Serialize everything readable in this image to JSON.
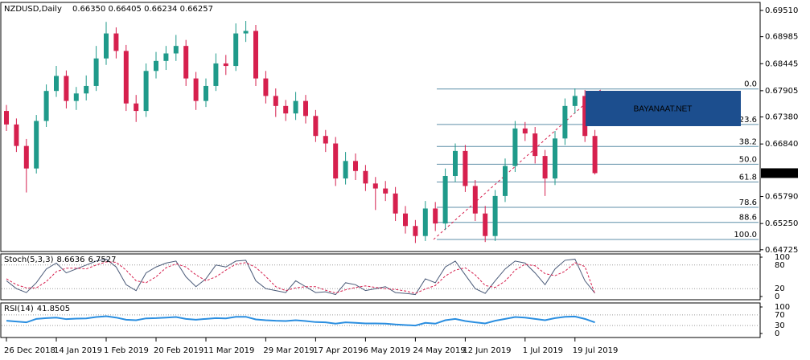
{
  "chart_data": [
    {
      "type": "candlestick",
      "title": "NZDUSD,Daily",
      "subtitle": "0.66350 0.66405 0.66234 0.66257",
      "categories": [
        "26 Dec 2018",
        null,
        null,
        null,
        null,
        "14 Jan 2019",
        null,
        null,
        null,
        null,
        "1 Feb 2019",
        null,
        null,
        null,
        null,
        "20 Feb 2019",
        null,
        null,
        null,
        null,
        "11 Mar 2019",
        null,
        null,
        null,
        null,
        null,
        "29 Mar 2019",
        null,
        null,
        null,
        null,
        "17 Apr 2019",
        null,
        null,
        null,
        null,
        "6 May 2019",
        null,
        null,
        null,
        null,
        "24 May 2019",
        null,
        null,
        null,
        null,
        "12 Jun 2019",
        null,
        null,
        null,
        null,
        null,
        "1 Jul 2019",
        null,
        null,
        null,
        null,
        "19 Jul 2019",
        null,
        null
      ],
      "open": [
        0.675,
        0.6723,
        0.668,
        0.6635,
        0.673,
        0.679,
        0.682,
        0.677,
        0.6785,
        0.68,
        0.6855,
        0.6905,
        0.687,
        0.6765,
        0.675,
        0.683,
        0.685,
        0.6865,
        0.688,
        0.6815,
        0.677,
        0.68,
        0.6845,
        0.684,
        0.6905,
        0.691,
        0.6815,
        0.678,
        0.676,
        0.6745,
        0.677,
        0.674,
        0.67,
        0.6685,
        0.6615,
        0.665,
        0.663,
        0.6605,
        0.6595,
        0.6585,
        0.6545,
        0.652,
        0.65,
        0.6555,
        0.6525,
        0.662,
        0.667,
        0.66,
        0.6545,
        0.65,
        0.658,
        0.664,
        0.6715,
        0.6705,
        0.666,
        0.6615,
        0.6695,
        0.676,
        0.678,
        0.67
      ],
      "high": [
        0.6762,
        0.6735,
        0.6694,
        0.6742,
        0.6803,
        0.684,
        0.6831,
        0.6798,
        0.6821,
        0.688,
        0.6928,
        0.6917,
        0.6882,
        0.6782,
        0.6845,
        0.6868,
        0.688,
        0.6902,
        0.6892,
        0.6828,
        0.6815,
        0.6865,
        0.6862,
        0.6925,
        0.693,
        0.6922,
        0.683,
        0.6795,
        0.6772,
        0.6788,
        0.6782,
        0.6752,
        0.6712,
        0.6698,
        0.6668,
        0.6665,
        0.6642,
        0.6618,
        0.661,
        0.6598,
        0.656,
        0.6532,
        0.657,
        0.6568,
        0.6635,
        0.6685,
        0.6682,
        0.6612,
        0.656,
        0.6592,
        0.6655,
        0.673,
        0.6728,
        0.6718,
        0.6672,
        0.671,
        0.6775,
        0.6795,
        0.6792,
        0.6712
      ],
      "low": [
        0.671,
        0.6668,
        0.6587,
        0.6625,
        0.6718,
        0.6778,
        0.6755,
        0.6752,
        0.6771,
        0.679,
        0.6842,
        0.6855,
        0.675,
        0.6728,
        0.6738,
        0.6815,
        0.6832,
        0.685,
        0.68,
        0.6752,
        0.6758,
        0.679,
        0.6822,
        0.683,
        0.6888,
        0.68,
        0.6765,
        0.6738,
        0.673,
        0.6732,
        0.6725,
        0.6688,
        0.6668,
        0.66,
        0.6603,
        0.6612,
        0.659,
        0.6552,
        0.657,
        0.653,
        0.6505,
        0.6486,
        0.649,
        0.651,
        0.6512,
        0.6608,
        0.6588,
        0.653,
        0.6488,
        0.649,
        0.6568,
        0.6628,
        0.669,
        0.6645,
        0.658,
        0.6602,
        0.6682,
        0.6745,
        0.6688,
        0.6623
      ],
      "close": [
        0.6723,
        0.668,
        0.6635,
        0.673,
        0.679,
        0.682,
        0.677,
        0.6785,
        0.68,
        0.6855,
        0.6905,
        0.687,
        0.6765,
        0.675,
        0.683,
        0.685,
        0.6865,
        0.688,
        0.6815,
        0.677,
        0.68,
        0.6845,
        0.684,
        0.6905,
        0.691,
        0.6815,
        0.678,
        0.676,
        0.6745,
        0.677,
        0.674,
        0.67,
        0.6685,
        0.6615,
        0.665,
        0.663,
        0.6605,
        0.6595,
        0.6585,
        0.6545,
        0.652,
        0.65,
        0.6555,
        0.6525,
        0.662,
        0.667,
        0.66,
        0.6545,
        0.65,
        0.658,
        0.664,
        0.6715,
        0.6705,
        0.666,
        0.6615,
        0.6695,
        0.676,
        0.678,
        0.67,
        0.66257
      ],
      "up_color": "#1f9a8a",
      "down_color": "#d6204e",
      "ylim": [
        0.6469,
        0.6967
      ],
      "yticks": [
        {
          "value": 0.6951,
          "label": "0.69510"
        },
        0.68985,
        0.68445,
        0.67905,
        {
          "value": 0.6738,
          "label": "0.67380"
        },
        {
          "value": 0.6684,
          "label": "0.66840"
        },
        {
          "value": 0.6579,
          "label": "0.65790"
        },
        {
          "value": 0.6525,
          "label": "0.65250"
        },
        0.64725
      ],
      "fibonacci": {
        "high": 0.6794,
        "low": 0.6493,
        "color": "#5f8fa8",
        "trend_color": "#d6204e",
        "levels": [
          {
            "value": 0,
            "label": "0.0"
          },
          23.6,
          38.2,
          {
            "value": 50,
            "label": "50.0"
          },
          61.8,
          78.6,
          88.6,
          {
            "value": 100,
            "label": "100.0"
          }
        ]
      },
      "annotation": "BAYANAAT.NET"
    },
    {
      "type": "line",
      "title": "Stoch(5,3,3)",
      "series": [
        {
          "color": "#4a5a78",
          "values": [
            40,
            20,
            10,
            35,
            70,
            85,
            60,
            70,
            80,
            90,
            95,
            75,
            30,
            15,
            60,
            75,
            85,
            90,
            50,
            25,
            45,
            80,
            75,
            90,
            92,
            40,
            20,
            15,
            10,
            40,
            25,
            10,
            12,
            5,
            35,
            30,
            15,
            20,
            25,
            10,
            8,
            5,
            45,
            35,
            75,
            90,
            55,
            20,
            8,
            40,
            70,
            90,
            85,
            60,
            30,
            70,
            92,
            95,
            40,
            8.6636
          ]
        },
        {
          "color": "#d6204e",
          "dashed": true,
          "values": [
            45,
            30,
            22,
            22,
            38,
            63,
            72,
            72,
            70,
            80,
            88,
            87,
            67,
            40,
            35,
            50,
            73,
            83,
            75,
            55,
            40,
            50,
            67,
            82,
            86,
            74,
            51,
            25,
            15,
            22,
            25,
            25,
            16,
            9,
            17,
            23,
            27,
            23,
            20,
            18,
            14,
            8,
            19,
            28,
            52,
            67,
            73,
            55,
            28,
            23,
            39,
            67,
            82,
            78,
            58,
            53,
            64,
            86,
            76,
            6.7527
          ]
        }
      ],
      "ylim": [
        0,
        100
      ],
      "yticks": [
        0,
        20,
        80,
        100
      ]
    },
    {
      "type": "line",
      "title": "RSI(14)",
      "series": [
        {
          "color": "#2a8ee0",
          "values": [
            48,
            45,
            42,
            55,
            58,
            60,
            54,
            56,
            57,
            62,
            65,
            60,
            52,
            50,
            57,
            58,
            60,
            62,
            55,
            52,
            55,
            58,
            57,
            63,
            63,
            53,
            50,
            48,
            47,
            50,
            47,
            43,
            42,
            37,
            42,
            40,
            38,
            38,
            37,
            34,
            32,
            30,
            40,
            37,
            50,
            55,
            47,
            42,
            38,
            48,
            55,
            62,
            60,
            55,
            50,
            58,
            63,
            64,
            55,
            41.8505
          ]
        }
      ],
      "ylim": [
        0,
        100
      ],
      "yticks": [
        0,
        30,
        70,
        100
      ]
    }
  ]
}
